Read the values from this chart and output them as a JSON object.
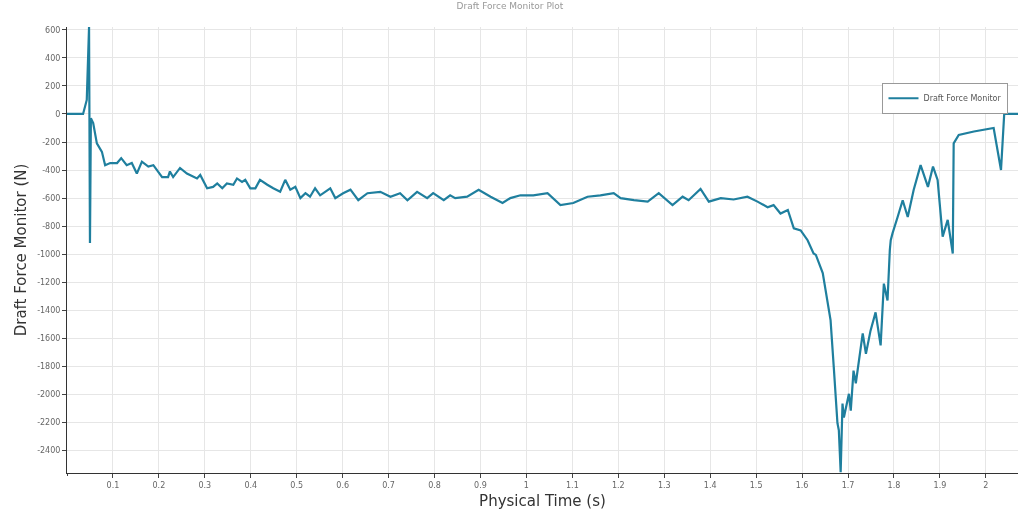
{
  "chart_data": {
    "type": "line",
    "title": "Draft Force Monitor Plot",
    "xlabel": "Physical Time (s)",
    "ylabel": "Draft Force Monitor (N)",
    "xlim": [
      0,
      2.07
    ],
    "xticks": [
      0.1,
      0.2,
      0.3,
      0.4,
      0.5,
      0.6,
      0.7,
      0.8,
      0.9,
      1,
      1.1,
      1.2,
      1.3,
      1.4,
      1.5,
      1.6,
      1.7,
      1.8,
      1.9,
      2
    ],
    "ylim": [
      -2560,
      620
    ],
    "yticks": [
      -2400,
      -2200,
      -2000,
      -1800,
      -1600,
      -1400,
      -1200,
      -1000,
      -800,
      -600,
      -400,
      -200,
      0,
      200,
      400,
      600
    ],
    "grid": true,
    "legend": "top right",
    "marker": "none",
    "line_style": "solid",
    "series": [
      {
        "name": "Draft Force Monitor",
        "color": "#1f7f9e",
        "x": [
          0,
          0.035,
          0.043,
          0.048,
          0.05,
          0.052,
          0.057,
          0.065,
          0.076,
          0.083,
          0.094,
          0.109,
          0.118,
          0.13,
          0.141,
          0.152,
          0.163,
          0.177,
          0.188,
          0.207,
          0.22,
          0.224,
          0.231,
          0.246,
          0.261,
          0.283,
          0.29,
          0.305,
          0.318,
          0.327,
          0.338,
          0.348,
          0.362,
          0.37,
          0.381,
          0.388,
          0.399,
          0.41,
          0.42,
          0.436,
          0.449,
          0.464,
          0.475,
          0.486,
          0.497,
          0.508,
          0.519,
          0.529,
          0.54,
          0.551,
          0.573,
          0.584,
          0.601,
          0.617,
          0.634,
          0.654,
          0.682,
          0.704,
          0.725,
          0.741,
          0.762,
          0.784,
          0.797,
          0.82,
          0.834,
          0.845,
          0.871,
          0.896,
          0.922,
          0.948,
          0.965,
          0.987,
          1.015,
          1.046,
          1.074,
          1.102,
          1.133,
          1.161,
          1.19,
          1.205,
          1.234,
          1.264,
          1.288,
          1.318,
          1.34,
          1.353,
          1.379,
          1.397,
          1.423,
          1.451,
          1.481,
          1.503,
          1.525,
          1.538,
          1.553,
          1.569,
          1.582,
          1.597,
          1.612,
          1.625,
          1.63,
          1.645,
          1.662,
          1.669,
          1.677,
          1.68,
          1.684,
          1.688,
          1.691,
          1.702,
          1.706,
          1.712,
          1.717,
          1.732,
          1.739,
          1.749,
          1.76,
          1.771,
          1.778,
          1.786,
          1.791,
          1.793,
          1.797,
          1.808,
          1.819,
          1.83,
          1.843,
          1.858,
          1.874,
          1.885,
          1.895,
          1.906,
          1.917,
          1.928,
          1.93,
          1.941,
          1.974,
          2.017,
          2.033,
          2.04,
          2.07
        ],
        "values": [
          0,
          0,
          100,
          620,
          -920,
          -30,
          -65,
          -210,
          -270,
          -365,
          -350,
          -350,
          -315,
          -365,
          -350,
          -425,
          -340,
          -375,
          -365,
          -450,
          -450,
          -410,
          -450,
          -385,
          -425,
          -460,
          -435,
          -530,
          -520,
          -495,
          -530,
          -495,
          -505,
          -460,
          -485,
          -470,
          -530,
          -530,
          -470,
          -505,
          -530,
          -555,
          -470,
          -540,
          -520,
          -600,
          -565,
          -590,
          -530,
          -580,
          -530,
          -600,
          -565,
          -540,
          -615,
          -565,
          -555,
          -590,
          -565,
          -615,
          -555,
          -600,
          -565,
          -615,
          -580,
          -600,
          -590,
          -540,
          -590,
          -635,
          -600,
          -580,
          -580,
          -565,
          -650,
          -635,
          -590,
          -580,
          -565,
          -600,
          -615,
          -625,
          -565,
          -650,
          -590,
          -615,
          -535,
          -625,
          -600,
          -610,
          -590,
          -625,
          -665,
          -650,
          -710,
          -685,
          -815,
          -830,
          -900,
          -995,
          -1005,
          -1135,
          -1470,
          -1805,
          -2205,
          -2255,
          -2555,
          -2065,
          -2165,
          -1995,
          -2115,
          -1830,
          -1920,
          -1565,
          -1710,
          -1545,
          -1415,
          -1650,
          -1210,
          -1330,
          -970,
          -900,
          -850,
          -735,
          -615,
          -735,
          -540,
          -365,
          -520,
          -375,
          -470,
          -875,
          -755,
          -995,
          -210,
          -150,
          -125,
          -100,
          -400,
          0,
          0
        ]
      }
    ]
  }
}
